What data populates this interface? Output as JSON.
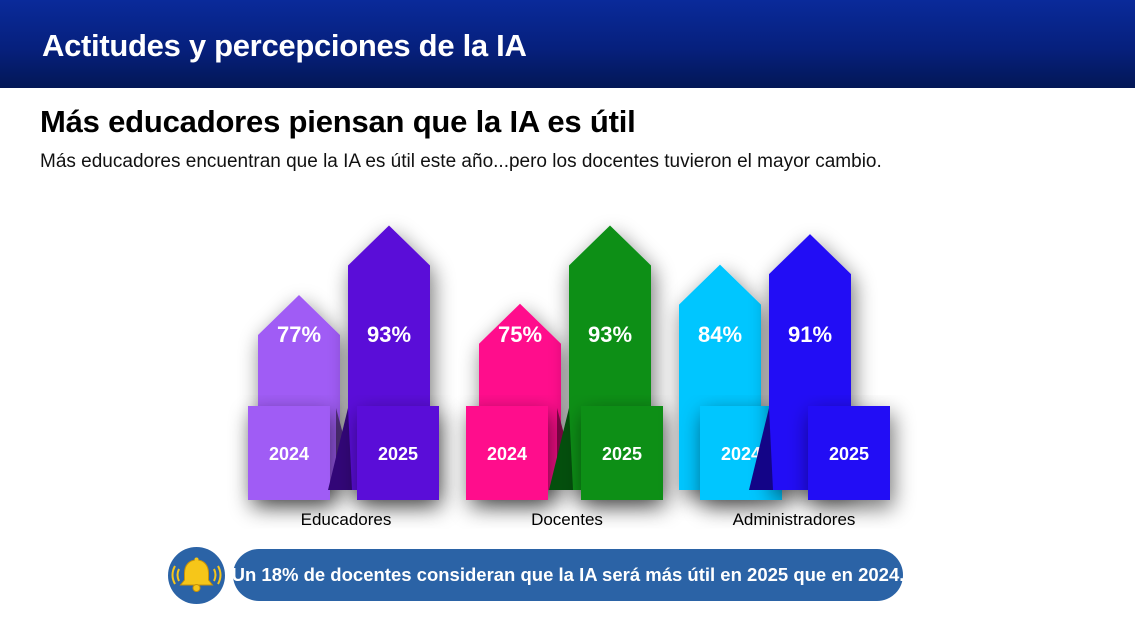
{
  "header": {
    "title": "Actitudes y percepciones de la IA"
  },
  "headline": "Más educadores piensan que la IA es útil",
  "subtitle": "Más educadores encuentran que la IA es útil este año...pero los docentes tuvieron el mayor cambio.",
  "callout": {
    "icon": "bell-icon",
    "text": "Un 18% de docentes consideran que la IA será más útil en 2025 que en 2024."
  },
  "chart_data": {
    "type": "bar",
    "categories": [
      "Educadores",
      "Docentes",
      "Administradores"
    ],
    "series": [
      {
        "name": "2024",
        "values": [
          77,
          75,
          84
        ],
        "value_labels": [
          "77%",
          "75%",
          "84%"
        ],
        "colors": [
          "#a05cf5",
          "#ff0a8c",
          "#00c6ff"
        ]
      },
      {
        "name": "2025",
        "values": [
          93,
          93,
          91
        ],
        "value_labels": [
          "93%",
          "93%",
          "91%"
        ],
        "colors": [
          "#5a0ad8",
          "#078f18",
          "#2308f5"
        ]
      }
    ],
    "ylim": [
      0,
      100
    ],
    "grid": false,
    "legend": "none"
  }
}
